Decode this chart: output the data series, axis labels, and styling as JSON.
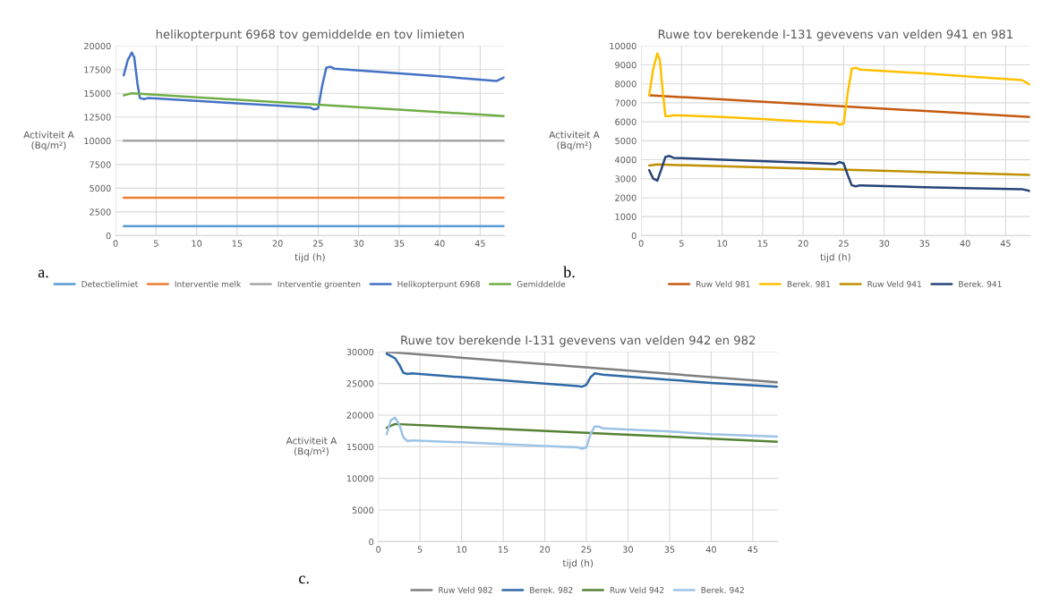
{
  "chart_data": [
    {
      "type": "line",
      "title": "helikopterpunt 6968 tov gemiddelde en tov limieten",
      "xlabel": "tijd (h)",
      "ylabel": "Activiteit A\n(Bq/m²)",
      "annotations": [
        "a."
      ],
      "xlim": [
        0,
        48
      ],
      "xticks": [
        0,
        5,
        10,
        15,
        20,
        25,
        30,
        35,
        40,
        45
      ],
      "ylim": [
        0,
        20000
      ],
      "yticks": [
        0,
        2500,
        5000,
        7500,
        10000,
        12500,
        15000,
        17500,
        20000
      ],
      "grid": true,
      "legend": "bottom",
      "marker": "none",
      "line_style": "solid",
      "series": [
        {
          "name": "Detectielimiet",
          "color": "#5b9bd5",
          "x": [
            1,
            48
          ],
          "values": [
            1000,
            1000
          ]
        },
        {
          "name": "Interventie melk",
          "color": "#ed7d31",
          "x": [
            1,
            48
          ],
          "values": [
            4000,
            4000
          ]
        },
        {
          "name": "Interventie groenten",
          "color": "#a5a5a5",
          "x": [
            1,
            48
          ],
          "values": [
            10000,
            10000
          ]
        },
        {
          "name": "Helikopterpunt 6968",
          "color": "#4472c4",
          "x": [
            1,
            1.5,
            2,
            2.3,
            2.7,
            3,
            3.5,
            4,
            10,
            15,
            20,
            24,
            24.5,
            25,
            25.5,
            26,
            26.5,
            27,
            35,
            40,
            47,
            48
          ],
          "values": [
            16900,
            18500,
            19300,
            18800,
            16000,
            14500,
            14400,
            14500,
            14200,
            13950,
            13700,
            13500,
            13300,
            13400,
            15800,
            17700,
            17800,
            17600,
            17100,
            16800,
            16300,
            16700
          ]
        },
        {
          "name": "Gemiddelde",
          "color": "#70ad47",
          "x": [
            1,
            1.5,
            2,
            25,
            48
          ],
          "values": [
            14800,
            14900,
            15000,
            13800,
            12600
          ]
        }
      ]
    },
    {
      "type": "line",
      "title": "Ruwe tov berekende I-131 gevevens van velden 941 en 981",
      "xlabel": "tijd (h)",
      "ylabel": "Activiteit A\n(Bq/m²)",
      "annotations": [
        "b."
      ],
      "xlim": [
        0,
        48
      ],
      "xticks": [
        0,
        5,
        10,
        15,
        20,
        25,
        30,
        35,
        40,
        45
      ],
      "ylim": [
        0,
        10000
      ],
      "yticks": [
        0,
        1000,
        2000,
        3000,
        4000,
        5000,
        6000,
        7000,
        8000,
        9000,
        10000
      ],
      "grid": true,
      "legend": "bottom",
      "marker": "none",
      "line_style": "solid",
      "series": [
        {
          "name": "Ruw Veld 981",
          "color": "#c55a11",
          "x": [
            1,
            48
          ],
          "values": [
            7400,
            6250
          ]
        },
        {
          "name": "Berek. 981",
          "color": "#ffc000",
          "x": [
            1,
            1.5,
            2,
            2.3,
            2.7,
            3,
            3.5,
            4,
            10,
            15,
            20,
            24,
            24.5,
            25,
            25.5,
            26,
            26.5,
            27,
            35,
            40,
            47,
            48
          ],
          "values": [
            7400,
            8800,
            9600,
            9300,
            7500,
            6300,
            6300,
            6350,
            6250,
            6150,
            6020,
            5950,
            5850,
            5900,
            7500,
            8800,
            8850,
            8750,
            8550,
            8400,
            8200,
            7950
          ]
        },
        {
          "name": "Ruw Veld 941",
          "color": "#bf9000",
          "x": [
            1,
            2,
            48
          ],
          "values": [
            3700,
            3750,
            3200
          ]
        },
        {
          "name": "Berek. 941",
          "color": "#264478",
          "x": [
            1,
            1.5,
            2,
            2.5,
            3,
            3.5,
            4,
            10,
            20,
            24,
            24.5,
            25,
            25.5,
            26,
            26.5,
            27,
            35,
            40,
            47,
            48
          ],
          "values": [
            3450,
            3000,
            2900,
            3500,
            4150,
            4200,
            4100,
            4000,
            3850,
            3780,
            3880,
            3800,
            3200,
            2650,
            2600,
            2650,
            2550,
            2500,
            2450,
            2350
          ]
        }
      ]
    },
    {
      "type": "line",
      "title": "Ruwe tov berekende I-131 gevevens van velden 942 en 982",
      "xlabel": "tijd (h)",
      "ylabel": "Activiteit A\n(Bq/m²)",
      "annotations": [
        "c."
      ],
      "xlim": [
        0,
        48
      ],
      "xticks": [
        0,
        5,
        10,
        15,
        20,
        25,
        30,
        35,
        40,
        45
      ],
      "ylim": [
        0,
        30000
      ],
      "yticks": [
        0,
        5000,
        10000,
        15000,
        20000,
        25000,
        30000
      ],
      "grid": true,
      "legend": "bottom",
      "marker": "none",
      "line_style": "solid",
      "series": [
        {
          "name": "Ruw Veld 982",
          "color": "#7f7f7f",
          "x": [
            1,
            48
          ],
          "values": [
            30000,
            25200
          ]
        },
        {
          "name": "Berek. 982",
          "color": "#2e6aa6",
          "x": [
            1,
            2,
            2.5,
            3,
            3.5,
            4,
            10,
            20,
            24,
            24.5,
            25,
            25.5,
            26,
            26.5,
            27,
            35,
            40,
            48
          ],
          "values": [
            29700,
            29000,
            28000,
            26700,
            26500,
            26600,
            26000,
            25000,
            24600,
            24500,
            24800,
            26000,
            26600,
            26500,
            26400,
            25600,
            25100,
            24500
          ]
        },
        {
          "name": "Ruw Veld 942",
          "color": "#548235",
          "x": [
            1,
            2,
            48
          ],
          "values": [
            18000,
            18600,
            15800
          ]
        },
        {
          "name": "Berek. 942",
          "color": "#9dc3e6",
          "x": [
            1,
            1.5,
            2,
            2.5,
            3,
            3.5,
            4,
            10,
            20,
            24,
            24.5,
            25,
            25.5,
            26,
            26.5,
            27,
            35,
            40,
            48
          ],
          "values": [
            17000,
            19200,
            19600,
            18600,
            16500,
            15900,
            16000,
            15700,
            15100,
            14900,
            14700,
            14900,
            17000,
            18200,
            18200,
            17900,
            17400,
            17000,
            16600
          ]
        }
      ]
    }
  ]
}
